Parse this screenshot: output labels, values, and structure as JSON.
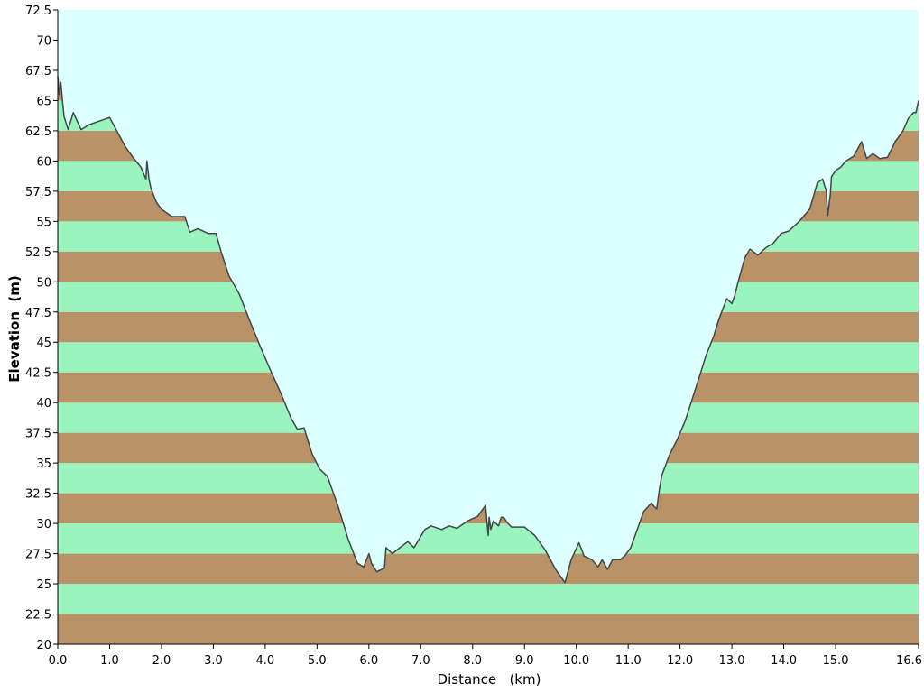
{
  "chart_data": {
    "type": "area",
    "title": "",
    "xlabel": "Distance   (km)",
    "ylabel": "Elevation  (m)",
    "xlim": [
      0.0,
      16.6
    ],
    "ylim": [
      20,
      72.5
    ],
    "x_ticks": [
      0.0,
      1.0,
      2.0,
      3.0,
      4.0,
      5.0,
      6.0,
      7.0,
      8.0,
      9.0,
      10.0,
      11.0,
      12.0,
      13.0,
      14.0,
      15.0,
      16.6
    ],
    "x_tick_labels": [
      "0.0",
      "1.0",
      "2.0",
      "3.0",
      "4.0",
      "5.0",
      "6.0",
      "7.0",
      "8.0",
      "9.0",
      "10.0",
      "11.0",
      "12.0",
      "13.0",
      "14.0",
      "15.0",
      "16.6"
    ],
    "y_ticks": [
      20,
      22.5,
      25,
      27.5,
      30,
      32.5,
      35,
      37.5,
      40,
      42.5,
      45,
      47.5,
      50,
      52.5,
      55,
      57.5,
      60,
      62.5,
      65,
      67.5,
      70,
      72.5
    ],
    "y_tick_labels": [
      "20",
      "22.5",
      "25",
      "27.5",
      "30",
      "32.5",
      "35",
      "37.5",
      "40",
      "42.5",
      "45",
      "47.5",
      "50",
      "52.5",
      "55",
      "57.5",
      "60",
      "62.5",
      "65",
      "67.5",
      "70",
      "72.5"
    ],
    "band_interval": 2.5,
    "colors": {
      "sky": "#dcffff",
      "band_light": "#99f4be",
      "band_dark": "#b99367",
      "profile_line": "#444444",
      "axis": "#000000"
    },
    "series": [
      {
        "x": [
          0.0,
          0.03,
          0.06,
          0.09,
          0.12,
          0.2,
          0.3,
          0.45,
          0.6,
          0.8,
          1.0,
          1.2,
          1.3,
          1.45,
          1.6,
          1.7,
          1.72,
          1.76,
          1.8,
          1.9,
          2.0,
          2.2,
          2.45,
          2.55,
          2.7,
          2.9,
          3.05,
          3.15,
          3.3,
          3.5,
          3.7,
          3.9,
          4.1,
          4.3,
          4.5,
          4.62,
          4.75,
          4.9,
          5.05,
          5.2,
          5.4,
          5.6,
          5.78,
          5.9,
          6.0,
          6.05,
          6.15,
          6.3,
          6.33,
          6.45,
          6.6,
          6.75,
          6.87,
          7.08,
          7.2,
          7.4,
          7.55,
          7.7,
          7.9,
          8.1,
          8.25,
          8.3,
          8.32,
          8.35,
          8.4,
          8.45,
          8.5,
          8.55,
          8.6,
          8.68,
          8.75,
          9.0,
          9.2,
          9.4,
          9.6,
          9.78,
          9.9,
          10.05,
          10.15,
          10.3,
          10.42,
          10.5,
          10.6,
          10.7,
          10.85,
          10.95,
          11.05,
          11.2,
          11.3,
          11.45,
          11.5,
          11.55,
          11.6,
          11.65,
          11.8,
          11.95,
          12.1,
          12.25,
          12.4,
          12.5,
          12.65,
          12.75,
          12.9,
          13.0,
          13.05,
          13.12,
          13.25,
          13.35,
          13.5,
          13.65,
          13.8,
          13.95,
          14.1,
          14.3,
          14.5,
          14.65,
          14.75,
          14.82,
          14.85,
          14.9,
          14.92,
          15.0,
          15.1,
          15.2,
          15.35,
          15.5,
          15.6,
          15.72,
          15.85,
          16.0,
          16.15,
          16.3,
          16.4,
          16.5,
          16.55,
          16.6
        ],
        "y": [
          67.0,
          65.5,
          66.5,
          65.0,
          63.7,
          62.6,
          64.0,
          62.6,
          63.0,
          63.3,
          63.6,
          62.0,
          61.2,
          60.3,
          59.5,
          58.5,
          60.0,
          58.5,
          57.7,
          56.6,
          56.0,
          55.4,
          55.4,
          54.1,
          54.4,
          54.0,
          54.0,
          52.5,
          50.5,
          49.0,
          46.8,
          44.7,
          42.7,
          40.8,
          38.7,
          37.8,
          37.9,
          35.8,
          34.5,
          33.9,
          31.5,
          28.7,
          26.7,
          26.4,
          27.5,
          26.7,
          26.0,
          26.3,
          28.0,
          27.5,
          28.0,
          28.5,
          28.0,
          29.5,
          29.8,
          29.5,
          29.8,
          29.6,
          30.2,
          30.6,
          31.5,
          29.0,
          30.5,
          29.5,
          30.2,
          30.0,
          29.8,
          30.5,
          30.5,
          30.0,
          29.7,
          29.7,
          29.0,
          27.8,
          26.2,
          25.1,
          27.0,
          28.4,
          27.3,
          27.0,
          26.4,
          27.0,
          26.2,
          27.0,
          27.0,
          27.4,
          28.0,
          29.8,
          31.0,
          31.7,
          31.4,
          31.2,
          32.8,
          34.0,
          35.7,
          37.0,
          38.5,
          40.5,
          42.5,
          43.9,
          45.5,
          46.9,
          48.6,
          48.2,
          48.8,
          50.0,
          52.0,
          52.7,
          52.2,
          52.8,
          53.2,
          54.0,
          54.2,
          55.0,
          56.0,
          58.2,
          58.5,
          57.5,
          55.5,
          57.3,
          58.7,
          59.2,
          59.5,
          60.0,
          60.4,
          61.6,
          60.2,
          60.6,
          60.2,
          60.3,
          61.6,
          62.5,
          63.5,
          64.0,
          64.0,
          65.0
        ]
      }
    ]
  }
}
